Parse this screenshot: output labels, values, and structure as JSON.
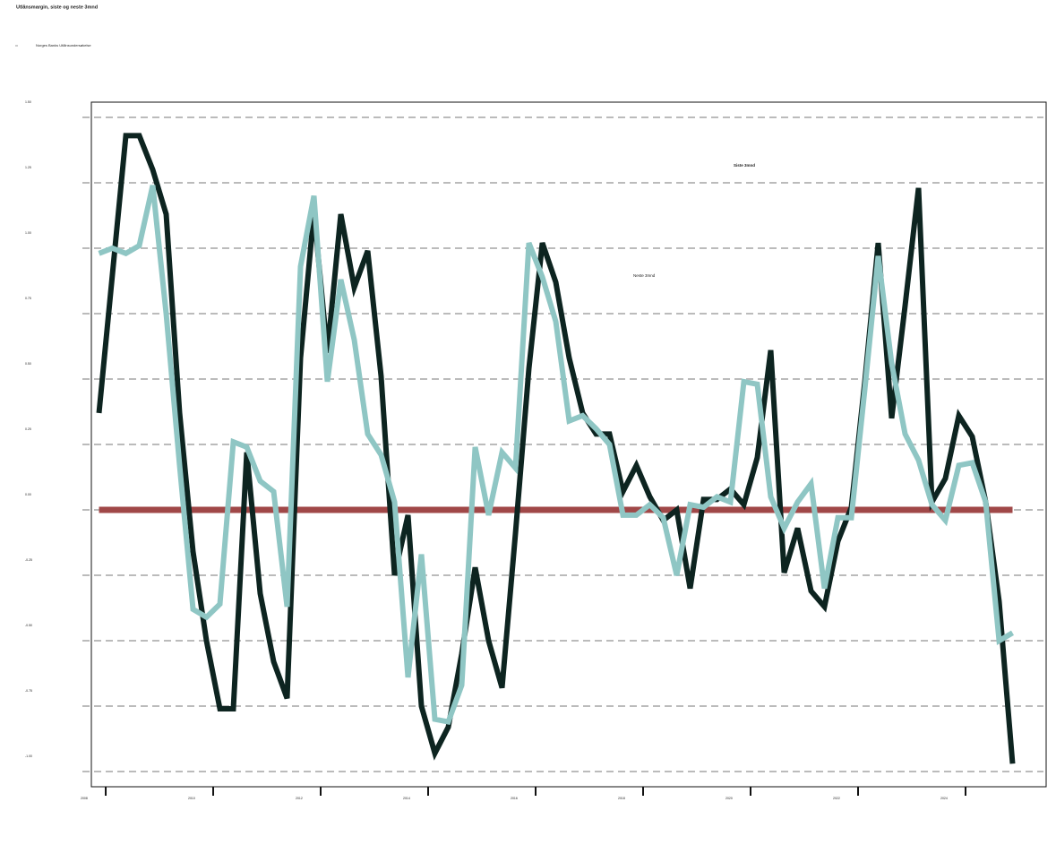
{
  "chart_data": {
    "type": "line",
    "title": "Utlånsmargin, siste og neste 3mnd",
    "subtitle": "Norges Banks Utlånsundersøkelse",
    "x": [
      2007.875,
      2008.125,
      2008.375,
      2008.625,
      2008.875,
      2009.125,
      2009.375,
      2009.625,
      2009.875,
      2010.125,
      2010.375,
      2010.625,
      2010.875,
      2011.125,
      2011.375,
      2011.625,
      2011.875,
      2012.125,
      2012.375,
      2012.625,
      2012.875,
      2013.125,
      2013.375,
      2013.625,
      2013.875,
      2014.125,
      2014.375,
      2014.625,
      2014.875,
      2015.125,
      2015.375,
      2015.625,
      2015.875,
      2016.125,
      2016.375,
      2016.625,
      2016.875,
      2017.125,
      2017.375,
      2017.625,
      2017.875,
      2018.125,
      2018.375,
      2018.625,
      2018.875,
      2019.125,
      2019.375,
      2019.625,
      2019.875,
      2020.125,
      2020.375,
      2020.625,
      2020.875,
      2021.125,
      2021.375,
      2021.625,
      2021.875,
      2022.125,
      2022.375,
      2022.625,
      2022.875,
      2023.125,
      2023.375,
      2023.625,
      2023.875,
      2024.125,
      2024.375,
      2024.625,
      2024.875
    ],
    "series": [
      {
        "name": "Siste 3mnd",
        "color": "#0d2420",
        "values": [
          0.37,
          0.9,
          1.43,
          1.43,
          1.3,
          1.13,
          0.37,
          -0.16,
          -0.5,
          -0.76,
          -0.76,
          0.22,
          -0.32,
          -0.58,
          -0.72,
          0.58,
          1.14,
          0.6,
          1.13,
          0.85,
          0.99,
          0.51,
          -0.25,
          -0.02,
          -0.75,
          -0.93,
          -0.83,
          -0.55,
          -0.22,
          -0.5,
          -0.68,
          -0.09,
          0.54,
          1.02,
          0.87,
          0.58,
          0.37,
          0.29,
          0.29,
          0.07,
          0.17,
          0.05,
          -0.04,
          0.0,
          -0.3,
          0.04,
          0.04,
          0.08,
          0.02,
          0.2,
          0.61,
          -0.24,
          -0.07,
          -0.31,
          -0.37,
          -0.12,
          0.01,
          0.49,
          1.02,
          0.35,
          0.78,
          1.23,
          0.03,
          0.12,
          0.36,
          0.28,
          0.03,
          -0.35,
          -0.97
        ]
      },
      {
        "name": "Neste 3mnd",
        "color": "#8fc6c4",
        "values": [
          0.98,
          1.0,
          0.98,
          1.01,
          1.24,
          0.75,
          0.17,
          -0.38,
          -0.41,
          -0.36,
          0.26,
          0.24,
          0.11,
          0.07,
          -0.37,
          0.93,
          1.2,
          0.49,
          0.88,
          0.65,
          0.29,
          0.21,
          0.03,
          -0.64,
          -0.17,
          -0.8,
          -0.81,
          -0.67,
          0.24,
          -0.02,
          0.22,
          0.16,
          1.02,
          0.89,
          0.72,
          0.34,
          0.36,
          0.31,
          0.25,
          -0.02,
          -0.02,
          0.02,
          -0.03,
          -0.25,
          0.02,
          0.01,
          0.05,
          0.03,
          0.49,
          0.48,
          0.05,
          -0.07,
          0.03,
          0.1,
          -0.3,
          -0.03,
          -0.03,
          0.46,
          0.97,
          0.56,
          0.29,
          0.19,
          0.02,
          -0.04,
          0.17,
          0.18,
          0.03,
          -0.5,
          -0.47
        ]
      }
    ],
    "reference_line": {
      "value": 0,
      "color": "#a04848"
    },
    "xlim": [
      2007.733,
      2025.5
    ],
    "xticks": [
      2008,
      2010,
      2012,
      2014,
      2016,
      2018,
      2020,
      2022,
      2024
    ],
    "ylim": [
      -1.058,
      1.558
    ],
    "yticks": [
      {
        "value": -1,
        "label": "-1.00"
      },
      {
        "value": -0.75,
        "label": "-0.75"
      },
      {
        "value": -0.5,
        "label": "-0.50"
      },
      {
        "value": -0.25,
        "label": "-0.25"
      },
      {
        "value": 0,
        "label": "0.00"
      },
      {
        "value": 0.25,
        "label": "0.25"
      },
      {
        "value": 0.5,
        "label": "0.50"
      },
      {
        "value": 0.75,
        "label": "0.75"
      },
      {
        "value": 1,
        "label": "1.00"
      },
      {
        "value": 1.25,
        "label": "1.25"
      },
      {
        "value": 1.5,
        "label": "1.50"
      }
    ],
    "grid": true
  }
}
